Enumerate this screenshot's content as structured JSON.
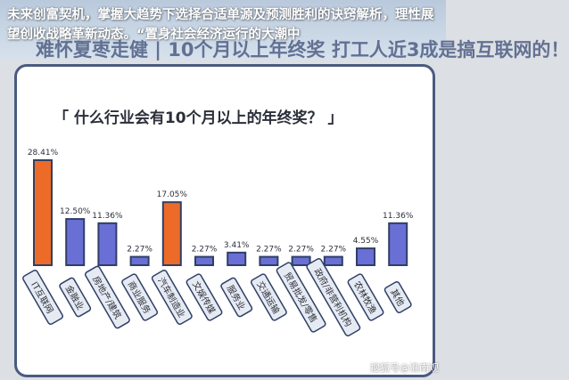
{
  "header": {
    "headline": "未来创富契机，掌握大趋势下选择合适单源及预测胜利的诀窍解析，理性展望创收战略革新动态。“置身社会经济运行的大潮中",
    "background_text": "难怀夏枣走健 | 10个月以上年终奖 打工人近3成是搞互联网的！"
  },
  "chart_data": {
    "type": "bar",
    "title": "「 什么行业会有10个月以上的年终奖？ 」",
    "categories": [
      "IT互联网",
      "金融业",
      "房地产/建筑",
      "商业服务",
      "汽车制造业",
      "文娱传媒",
      "服务业",
      "交通运输",
      "贸易批发/零售",
      "政府/非营利机构",
      "农林牧渔",
      "其他"
    ],
    "values": [
      28.41,
      12.5,
      11.36,
      2.27,
      17.05,
      2.27,
      3.41,
      2.27,
      2.27,
      2.27,
      4.55,
      11.36
    ],
    "value_labels": [
      "28.41%",
      "12.50%",
      "11.36%",
      "2.27%",
      "17.05%",
      "2.27%",
      "3.41%",
      "2.27%",
      "2.27%",
      "2.27%",
      "4.55%",
      "11.36%"
    ],
    "highlight": [
      0,
      4
    ],
    "colors": {
      "highlight": "#ec6b28",
      "normal": "#6a6fd6",
      "stroke": "#2f3f66",
      "label_bg": "#e6ebf3"
    }
  },
  "watermark": "搜狐号@淮南观"
}
